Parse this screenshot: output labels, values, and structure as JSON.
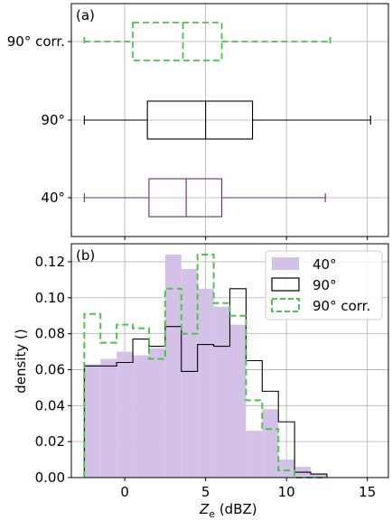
{
  "chart_data": [
    {
      "type": "box",
      "panel_label": "(a)",
      "x_range": [
        -3.3,
        16.3
      ],
      "x_ticks": [
        0,
        5,
        10,
        15
      ],
      "grid": true,
      "categories": [
        "90° corr.",
        "90°",
        "40°"
      ],
      "boxes": [
        {
          "category": "90° corr.",
          "whisker_low": -2.5,
          "q1": 0.5,
          "median": 3.6,
          "q3": 6.0,
          "whisker_high": 12.7,
          "color": "#4dc34d",
          "dashed": true
        },
        {
          "category": "90°",
          "whisker_low": -2.5,
          "q1": 1.4,
          "median": 5.0,
          "q3": 7.9,
          "whisker_high": 15.2,
          "color": "#000000",
          "dashed": false
        },
        {
          "category": "40°",
          "whisker_low": -2.5,
          "q1": 1.5,
          "median": 3.8,
          "q3": 6.0,
          "whisker_high": 12.4,
          "color": "#6a2c7a",
          "dashed": false
        }
      ]
    },
    {
      "type": "histogram",
      "panel_label": "(b)",
      "xlabel_main": "Z",
      "xlabel_sub": "e",
      "xlabel_unit": " (dBZ)",
      "ylabel": "density ()",
      "x_range": [
        -3.3,
        16.3
      ],
      "y_range": [
        0,
        0.13
      ],
      "x_ticks": [
        0,
        5,
        10,
        15
      ],
      "x_tick_labels": [
        "0",
        "5",
        "10",
        "15"
      ],
      "y_ticks": [
        0,
        0.02,
        0.04,
        0.06,
        0.08,
        0.1,
        0.12
      ],
      "y_tick_labels": [
        "0.00",
        "0.02",
        "0.04",
        "0.06",
        "0.08",
        "0.10",
        "0.12"
      ],
      "grid": true,
      "legend_position": "top-right",
      "series": [
        {
          "name": "40°",
          "style": "filled",
          "color": "#d4c1e8",
          "bin_start": -2.5,
          "bin_width": 1.0,
          "values": [
            0.063,
            0.066,
            0.07,
            0.068,
            0.072,
            0.124,
            0.116,
            0.105,
            0.095,
            0.085,
            0.026,
            0.038,
            0.01,
            0.006,
            0.002
          ]
        },
        {
          "name": "90°",
          "style": "step",
          "color": "#000000",
          "bin_start": -2.5,
          "bin_width": 1.0,
          "values": [
            0.062,
            0.062,
            0.064,
            0.077,
            0.073,
            0.084,
            0.059,
            0.074,
            0.073,
            0.105,
            0.065,
            0.048,
            0.031,
            0.003,
            0.002
          ]
        },
        {
          "name": "90° corr.",
          "style": "step-dashed",
          "color": "#4dc34d",
          "bin_start": -2.5,
          "bin_width": 1.0,
          "values": [
            0.091,
            0.075,
            0.085,
            0.083,
            0.066,
            0.105,
            0.08,
            0.124,
            0.097,
            0.09,
            0.043,
            0.027,
            0.004,
            0.0,
            0.0
          ]
        }
      ]
    }
  ]
}
